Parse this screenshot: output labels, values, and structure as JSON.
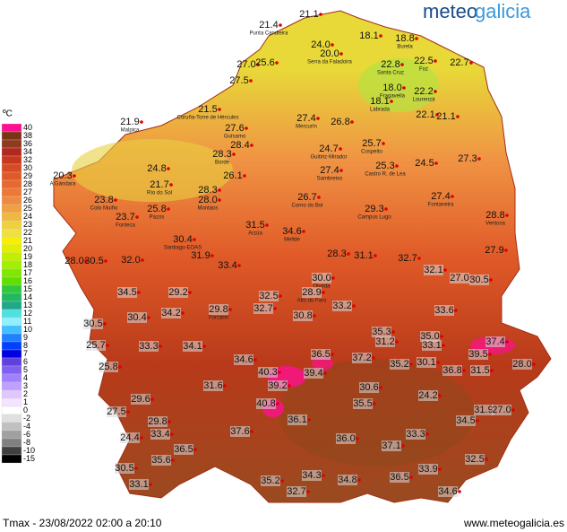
{
  "logo": {
    "part1": "meteo",
    "part2": "galicia"
  },
  "legend": {
    "unit": "ºC",
    "steps": [
      {
        "label": 40,
        "color": "#ff1090"
      },
      {
        "label": 38,
        "color": "#7a3414"
      },
      {
        "label": 36,
        "color": "#8e3a1c"
      },
      {
        "label": 34,
        "color": "#b0281e"
      },
      {
        "label": 32,
        "color": "#c8381e"
      },
      {
        "label": 30,
        "color": "#d84a22"
      },
      {
        "label": 29,
        "color": "#e05a28"
      },
      {
        "label": 28,
        "color": "#e8682e"
      },
      {
        "label": 27,
        "color": "#f07836"
      },
      {
        "label": 26,
        "color": "#f08a40"
      },
      {
        "label": 25,
        "color": "#f0a040"
      },
      {
        "label": 24,
        "color": "#f0b83c"
      },
      {
        "label": 23,
        "color": "#f0d03c"
      },
      {
        "label": 22,
        "color": "#f0e040"
      },
      {
        "label": 21,
        "color": "#f8f000"
      },
      {
        "label": 20,
        "color": "#e0f000"
      },
      {
        "label": 19,
        "color": "#c0f000"
      },
      {
        "label": 18,
        "color": "#a0f000"
      },
      {
        "label": 17,
        "color": "#80e800"
      },
      {
        "label": 16,
        "color": "#60e000"
      },
      {
        "label": 15,
        "color": "#30c840"
      },
      {
        "label": 14,
        "color": "#20b860"
      },
      {
        "label": 13,
        "color": "#20a888"
      },
      {
        "label": 12,
        "color": "#50e0e0"
      },
      {
        "label": 11,
        "color": "#90f0ff"
      },
      {
        "label": 10,
        "color": "#40c0ff"
      },
      {
        "label": 9,
        "color": "#2080ff"
      },
      {
        "label": 8,
        "color": "#0040ff"
      },
      {
        "label": 7,
        "color": "#0000e0"
      },
      {
        "label": 6,
        "color": "#6040e0"
      },
      {
        "label": 5,
        "color": "#8060f0"
      },
      {
        "label": 4,
        "color": "#a080ff"
      },
      {
        "label": 3,
        "color": "#c0a0ff"
      },
      {
        "label": 2,
        "color": "#e0c8ff"
      },
      {
        "label": 1,
        "color": "#f4e4ff"
      },
      {
        "label": 0,
        "color": "#ffffff"
      },
      {
        "label": -2,
        "color": "#e0e0e0"
      },
      {
        "label": -4,
        "color": "#c0c0c0"
      },
      {
        "label": -6,
        "color": "#a0a0a0"
      },
      {
        "label": -8,
        "color": "#808080"
      },
      {
        "label": -10,
        "color": "#404040"
      },
      {
        "label": -15,
        "color": "#000000"
      }
    ]
  },
  "stations": [
    {
      "temp": "21.4",
      "name": "Punta Candieira"
    },
    {
      "temp": "21.1"
    },
    {
      "temp": "18.1"
    },
    {
      "temp": "18.8",
      "name": "Burela"
    },
    {
      "temp": "24.0"
    },
    {
      "temp": "20.0",
      "name": "Serra da Faladoira"
    },
    {
      "temp": "27.0"
    },
    {
      "temp": "25.6"
    },
    {
      "temp": "22.8",
      "name": "Santa Cruz"
    },
    {
      "temp": "22.5",
      "name": "Foz"
    },
    {
      "temp": "22.7"
    },
    {
      "temp": "27.5"
    },
    {
      "temp": "18.0",
      "name": "Fragavella"
    },
    {
      "temp": "22.2",
      "name": "Lourenzá"
    },
    {
      "temp": "18.1",
      "name": "Labrada"
    },
    {
      "temp": "21.5",
      "name": "Coruña-Torre de Hércules"
    },
    {
      "temp": "21.9",
      "name": "Malpica"
    },
    {
      "temp": "27.4",
      "name": "Mercurín"
    },
    {
      "temp": "26.8"
    },
    {
      "temp": "22.1"
    },
    {
      "temp": "21.1"
    },
    {
      "temp": "27.6",
      "name": "Guísamo"
    },
    {
      "temp": "28.4"
    },
    {
      "temp": "28.3",
      "name": "Borde"
    },
    {
      "temp": "24.7",
      "name": "Guitiriz-Mirador"
    },
    {
      "temp": "25.7",
      "name": "Cospeito"
    },
    {
      "temp": "27.3"
    },
    {
      "temp": "24.8"
    },
    {
      "temp": "25.3",
      "name": "Castro R. de Lea"
    },
    {
      "temp": "24.5"
    },
    {
      "temp": "27.4",
      "name": "Sambreixo"
    },
    {
      "temp": "20.3",
      "name": "A Gándara"
    },
    {
      "temp": "26.1"
    },
    {
      "temp": "21.7",
      "name": "Río do Sol"
    },
    {
      "temp": "28.3"
    },
    {
      "temp": "28.0",
      "name": "Montaos"
    },
    {
      "temp": "23.8",
      "name": "Coto Muiño"
    },
    {
      "temp": "26.7",
      "name": "Corno do Boi"
    },
    {
      "temp": "29.3",
      "name": "Campus Lugo"
    },
    {
      "temp": "27.4",
      "name": "Fontaneira"
    },
    {
      "temp": "25.8",
      "name": "Pazos"
    },
    {
      "temp": "23.7",
      "name": "Fonteca"
    },
    {
      "temp": "28.8",
      "name": "Ventosa"
    },
    {
      "temp": "31.5",
      "name": "Arzúa"
    },
    {
      "temp": "34.6",
      "name": "Melide"
    },
    {
      "temp": "30.4",
      "name": "Santiago-EOAS"
    },
    {
      "temp": "27.9"
    },
    {
      "temp": "28.3"
    },
    {
      "temp": "31.1"
    },
    {
      "temp": "32.7"
    },
    {
      "temp": "28.0"
    },
    {
      "temp": "30.5"
    },
    {
      "temp": "32.0"
    },
    {
      "temp": "31.9"
    },
    {
      "temp": "33.4"
    },
    {
      "temp": "32.1"
    },
    {
      "temp": "30.0",
      "name": "Olveda"
    },
    {
      "temp": "27.0"
    },
    {
      "temp": "30.5"
    },
    {
      "temp": "34.5"
    },
    {
      "temp": "29.2"
    },
    {
      "temp": "32.5"
    },
    {
      "temp": "28.9",
      "name": "Alto do Faro"
    },
    {
      "temp": "33.2"
    },
    {
      "temp": "30.4"
    },
    {
      "temp": "34.2"
    },
    {
      "temp": "29.8",
      "name": "Forcarei"
    },
    {
      "temp": "32.7"
    },
    {
      "temp": "30.8"
    },
    {
      "temp": "33.6"
    },
    {
      "temp": "30.5"
    },
    {
      "temp": "35.3"
    },
    {
      "temp": "31.2"
    },
    {
      "temp": "35.0"
    },
    {
      "temp": "33.1"
    },
    {
      "temp": "37.4"
    },
    {
      "temp": "25.7"
    },
    {
      "temp": "33.3"
    },
    {
      "temp": "34.1"
    },
    {
      "temp": "36.5"
    },
    {
      "temp": "37.2"
    },
    {
      "temp": "35.2"
    },
    {
      "temp": "30.1"
    },
    {
      "temp": "39.5"
    },
    {
      "temp": "28.0"
    },
    {
      "temp": "34.6"
    },
    {
      "temp": "36.8"
    },
    {
      "temp": "31.5"
    },
    {
      "temp": "25.8"
    },
    {
      "temp": "40.3"
    },
    {
      "temp": "39.4"
    },
    {
      "temp": "39.2"
    },
    {
      "temp": "31.6"
    },
    {
      "temp": "30.6"
    },
    {
      "temp": "24.2"
    },
    {
      "temp": "29.6"
    },
    {
      "temp": "35.5"
    },
    {
      "temp": "40.8"
    },
    {
      "temp": "36.1"
    },
    {
      "temp": "27.5"
    },
    {
      "temp": "31.9"
    },
    {
      "temp": "27.0"
    },
    {
      "temp": "34.5"
    },
    {
      "temp": "29.8"
    },
    {
      "temp": "33.4"
    },
    {
      "temp": "37.6"
    },
    {
      "temp": "24.4"
    },
    {
      "temp": "36.0"
    },
    {
      "temp": "37.1"
    },
    {
      "temp": "33.3"
    },
    {
      "temp": "36.5"
    },
    {
      "temp": "30.5"
    },
    {
      "temp": "35.6"
    },
    {
      "temp": "34.3"
    },
    {
      "temp": "34.8"
    },
    {
      "temp": "36.5"
    },
    {
      "temp": "32.5"
    },
    {
      "temp": "33.9"
    },
    {
      "temp": "33.1"
    },
    {
      "temp": "35.2"
    },
    {
      "temp": "32.7"
    },
    {
      "temp": "34.6"
    }
  ],
  "footer": {
    "caption": "Tmax - 23/08/2022 02:00 a 20:10",
    "website": "www.meteogalicia.es"
  }
}
